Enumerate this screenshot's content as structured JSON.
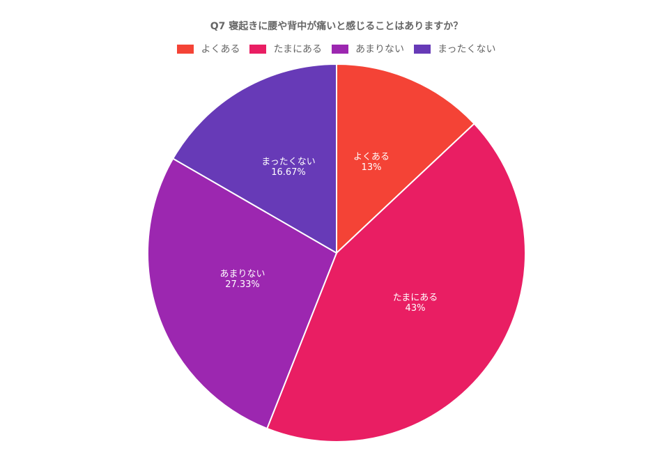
{
  "chart_data": {
    "type": "pie",
    "title": "Q7 寝起きに腰や背中が痛いと感じることはありますか？",
    "categories": [
      "よくある",
      "たまにある",
      "あまりない",
      "まったくない"
    ],
    "values": [
      13,
      43,
      27.33,
      16.67
    ],
    "value_labels": [
      "13%",
      "43%",
      "27.33%",
      "16.67%"
    ],
    "colors": [
      "#F44336",
      "#E91E63",
      "#9C27B0",
      "#673AB7"
    ],
    "legend_position": "top",
    "start_angle_deg": 0,
    "direction": "clockwise"
  },
  "legend": [
    {
      "label": "よくある",
      "color": "#F44336"
    },
    {
      "label": "たまにある",
      "color": "#E91E63"
    },
    {
      "label": "あまりない",
      "color": "#9C27B0"
    },
    {
      "label": "まったくない",
      "color": "#673AB7"
    }
  ],
  "slices": [
    {
      "label": "よくある",
      "value": "13%"
    },
    {
      "label": "たまにある",
      "value": "43%"
    },
    {
      "label": "あまりない",
      "value": "27.33%"
    },
    {
      "label": "まったくない",
      "value": "16.67%"
    }
  ]
}
